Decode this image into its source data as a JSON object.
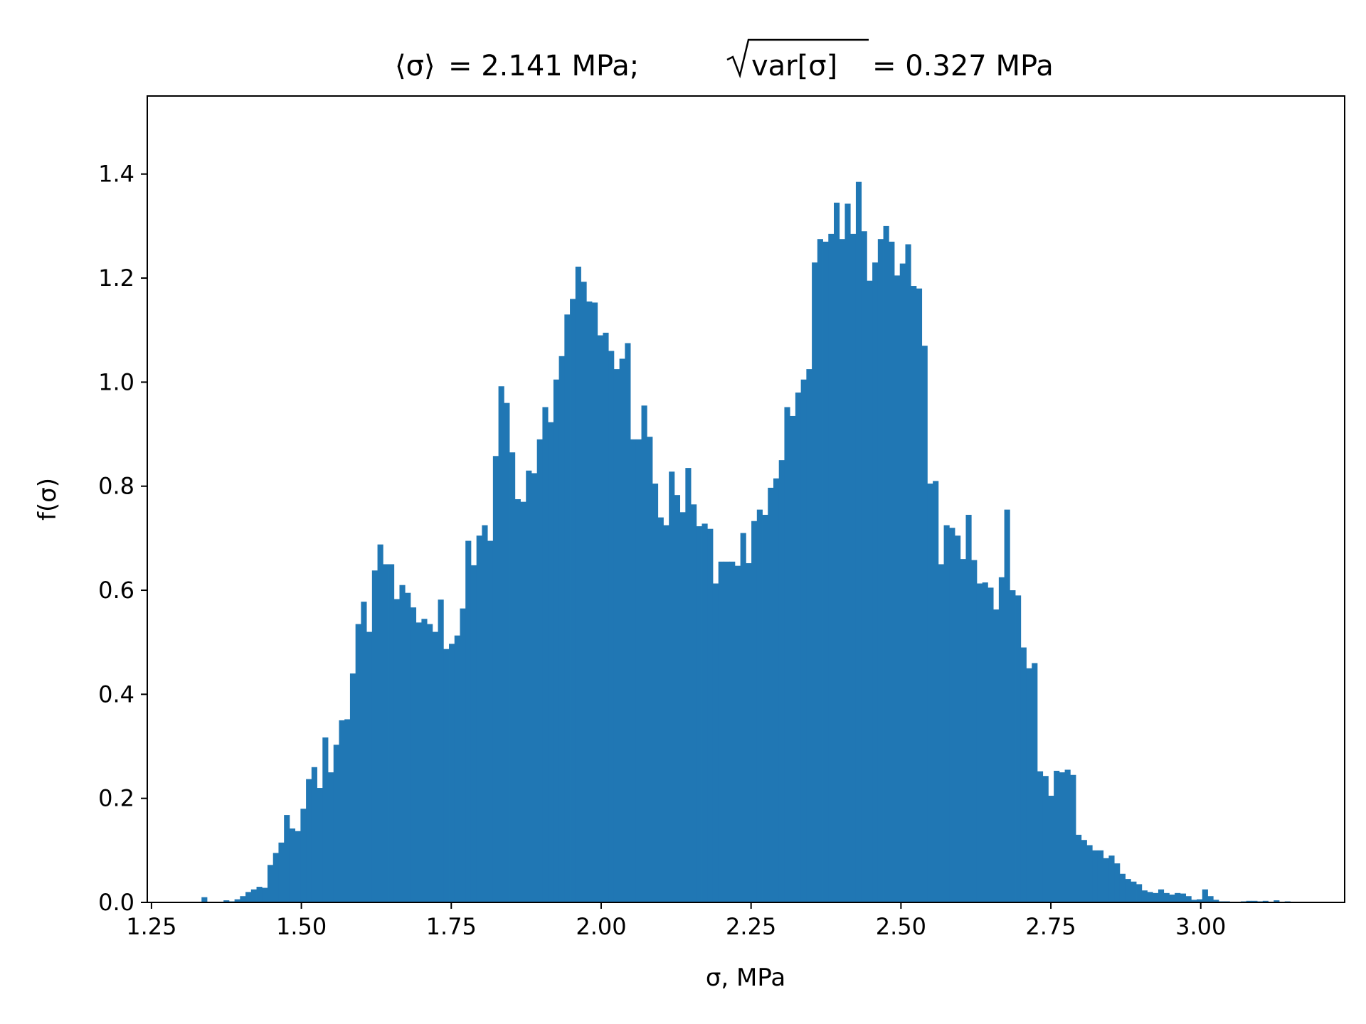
{
  "chart_data": {
    "type": "bar",
    "title_parts": {
      "mean_lhs": "⟨σ⟩",
      "mean_value": "= 2.141 MPa;",
      "std_radicand": "var[σ]",
      "std_value": "= 0.327 MPa"
    },
    "xlabel": "σ, MPa",
    "ylabel": "f(σ)",
    "xlim": [
      1.243,
      3.24
    ],
    "ylim": [
      0,
      1.55
    ],
    "xticks": [
      "1.25",
      "1.50",
      "1.75",
      "2.00",
      "2.25",
      "2.50",
      "2.75",
      "3.00"
    ],
    "yticks": [
      "0.0",
      "0.2",
      "0.4",
      "0.6",
      "0.8",
      "1.0",
      "1.2",
      "1.4"
    ],
    "bar_color": "#2077b4",
    "bin_start": 1.3335,
    "bin_width": 0.00917,
    "values": [
      0.01,
      0,
      0,
      0,
      0.004,
      0.002,
      0.006,
      0.012,
      0.02,
      0.025,
      0.03,
      0.028,
      0.072,
      0.095,
      0.115,
      0.168,
      0.142,
      0.137,
      0.18,
      0.237,
      0.26,
      0.22,
      0.317,
      0.25,
      0.303,
      0.35,
      0.352,
      0.44,
      0.535,
      0.578,
      0.52,
      0.638,
      0.688,
      0.65,
      0.65,
      0.583,
      0.61,
      0.595,
      0.567,
      0.538,
      0.545,
      0.535,
      0.52,
      0.582,
      0.487,
      0.497,
      0.513,
      0.565,
      0.695,
      0.648,
      0.705,
      0.725,
      0.695,
      0.858,
      0.992,
      0.96,
      0.865,
      0.775,
      0.77,
      0.83,
      0.825,
      0.89,
      0.952,
      0.923,
      1.005,
      1.05,
      1.13,
      1.16,
      1.222,
      1.193,
      1.155,
      1.153,
      1.09,
      1.095,
      1.06,
      1.025,
      1.045,
      1.075,
      0.89,
      0.89,
      0.955,
      0.895,
      0.805,
      0.74,
      0.725,
      0.828,
      0.783,
      0.75,
      0.835,
      0.765,
      0.723,
      0.728,
      0.718,
      0.613,
      0.655,
      0.655,
      0.655,
      0.647,
      0.71,
      0.652,
      0.733,
      0.755,
      0.745,
      0.797,
      0.815,
      0.85,
      0.952,
      0.935,
      0.98,
      1.005,
      1.025,
      1.23,
      1.275,
      1.27,
      1.285,
      1.345,
      1.275,
      1.343,
      1.285,
      1.385,
      1.29,
      1.195,
      1.23,
      1.275,
      1.3,
      1.27,
      1.205,
      1.228,
      1.265,
      1.185,
      1.18,
      1.07,
      0.805,
      0.81,
      0.65,
      0.725,
      0.72,
      0.705,
      0.66,
      0.745,
      0.658,
      0.613,
      0.615,
      0.605,
      0.563,
      0.625,
      0.755,
      0.6,
      0.59,
      0.49,
      0.45,
      0.46,
      0.252,
      0.243,
      0.205,
      0.253,
      0.25,
      0.255,
      0.245,
      0.13,
      0.12,
      0.11,
      0.1,
      0.1,
      0.085,
      0.09,
      0.075,
      0.055,
      0.045,
      0.04,
      0.035,
      0.023,
      0.02,
      0.018,
      0.025,
      0.018,
      0.015,
      0.018,
      0.017,
      0.012,
      0.005,
      0.006,
      0.025,
      0.012,
      0.005,
      0.002,
      0.002,
      0,
      0,
      0.002,
      0.003,
      0.003,
      0.002,
      0.003,
      0.001,
      0.004,
      0.001,
      0.002,
      0
    ]
  }
}
